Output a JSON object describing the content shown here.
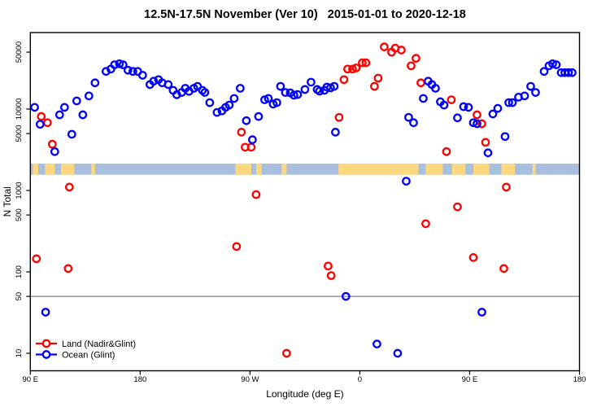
{
  "title": "12.5N-17.5N November (Ver 10)   2015-01-01 to 2020-12-18",
  "legend": {
    "items": [
      {
        "label": "Land (Nadir&Glint)",
        "color": "#ff0000"
      },
      {
        "label": "Ocean (Glint)",
        "color": "#0000ff"
      }
    ]
  },
  "chart_data": {
    "type": "scatter",
    "title": "12.5N-17.5N November (Ver 10)   2015-01-01 to 2020-12-18",
    "xlabel": "Longitude (deg E)",
    "ylabel": "N Total",
    "xlim": [
      90,
      540
    ],
    "ylim": [
      6.1,
      87000
    ],
    "y_scale": "log",
    "grid": false,
    "legend_position": "bottom-left",
    "x_ticks": [
      {
        "lon": 90,
        "label": "90 E"
      },
      {
        "lon": 180,
        "label": "180"
      },
      {
        "lon": 270,
        "label": "90 W"
      },
      {
        "lon": 360,
        "label": "0"
      },
      {
        "lon": 450,
        "label": "90 E"
      },
      {
        "lon": 540,
        "label": "180"
      }
    ],
    "y_ticks": [
      50000,
      10000,
      5000,
      1000,
      500,
      100,
      50,
      10
    ],
    "reference_line_value": 50,
    "reference_line_color": "#808080",
    "map_band": {
      "value_top": 2140,
      "value_bottom": 1560,
      "ocean_color": "#a9bfdf",
      "land_color": "#fdd87e",
      "land_patches_lon": [
        [
          92,
          96.5
        ],
        [
          102,
          110
        ],
        [
          115,
          126
        ],
        [
          140,
          143
        ],
        [
          258,
          271
        ],
        [
          275,
          279.5
        ],
        [
          296,
          300
        ],
        [
          342.5,
          408
        ],
        [
          414,
          428
        ],
        [
          435.5,
          446.5
        ],
        [
          453,
          466
        ],
        [
          476,
          487
        ],
        [
          501.5,
          504
        ]
      ]
    },
    "series": [
      {
        "name": "Land (Nadir&Glint)",
        "color": "#ff0000",
        "points": [
          [
            95,
            145
          ],
          [
            99,
            8100
          ],
          [
            104,
            6800
          ],
          [
            108,
            3700
          ],
          [
            121,
            110
          ],
          [
            122,
            1100
          ],
          [
            259,
            205
          ],
          [
            263,
            5200
          ],
          [
            266,
            3400
          ],
          [
            271,
            3400
          ],
          [
            275,
            890
          ],
          [
            300,
            10
          ],
          [
            334,
            118
          ],
          [
            336.5,
            90
          ],
          [
            343,
            7900
          ],
          [
            347,
            23000
          ],
          [
            350,
            31000
          ],
          [
            354,
            31000
          ],
          [
            357,
            32000
          ],
          [
            362,
            37000
          ],
          [
            365,
            37000
          ],
          [
            372,
            19000
          ],
          [
            375,
            24000
          ],
          [
            380,
            58000
          ],
          [
            386,
            50000
          ],
          [
            389,
            56000
          ],
          [
            394,
            53000
          ],
          [
            402,
            34000
          ],
          [
            406,
            42000
          ],
          [
            410,
            21000
          ],
          [
            414,
            390
          ],
          [
            431,
            3000
          ],
          [
            435,
            13000
          ],
          [
            440,
            630
          ],
          [
            453,
            150
          ],
          [
            456,
            8500
          ],
          [
            460,
            6600
          ],
          [
            463,
            3900
          ],
          [
            478,
            110
          ],
          [
            480,
            1100
          ]
        ]
      },
      {
        "name": "Ocean (Glint)",
        "color": "#0000ff",
        "points": [
          [
            93.5,
            10500
          ],
          [
            98,
            6500
          ],
          [
            102.5,
            32
          ],
          [
            110,
            3000
          ],
          [
            114,
            8500
          ],
          [
            118,
            10500
          ],
          [
            124,
            4900
          ],
          [
            128,
            12600
          ],
          [
            133,
            8500
          ],
          [
            138,
            14500
          ],
          [
            143,
            21000
          ],
          [
            152,
            29000
          ],
          [
            156,
            31000
          ],
          [
            159,
            35000
          ],
          [
            163,
            36000
          ],
          [
            166,
            35000
          ],
          [
            170,
            30000
          ],
          [
            174,
            29000
          ],
          [
            178,
            29000
          ],
          [
            182,
            26000
          ],
          [
            188,
            20000
          ],
          [
            191,
            22000
          ],
          [
            195,
            23000
          ],
          [
            198,
            21000
          ],
          [
            203,
            20000
          ],
          [
            207,
            17000
          ],
          [
            210,
            15000
          ],
          [
            214,
            16000
          ],
          [
            217,
            18000
          ],
          [
            220,
            16500
          ],
          [
            224,
            18000
          ],
          [
            227,
            19000
          ],
          [
            231,
            17000
          ],
          [
            233,
            16000
          ],
          [
            237,
            12000
          ],
          [
            243,
            9100
          ],
          [
            247,
            9500
          ],
          [
            250,
            10500
          ],
          [
            253,
            11200
          ],
          [
            257,
            13500
          ],
          [
            262,
            18000
          ],
          [
            267,
            7200
          ],
          [
            272,
            4200
          ],
          [
            277,
            8100
          ],
          [
            282,
            13000
          ],
          [
            285,
            13500
          ],
          [
            289,
            11500
          ],
          [
            292,
            12000
          ],
          [
            295,
            19000
          ],
          [
            299,
            16000
          ],
          [
            303,
            15800
          ],
          [
            306,
            14800
          ],
          [
            309,
            15100
          ],
          [
            315,
            17400
          ],
          [
            320,
            21400
          ],
          [
            325,
            17400
          ],
          [
            327,
            16600
          ],
          [
            331,
            17000
          ],
          [
            333,
            18600
          ],
          [
            336,
            18200
          ],
          [
            339,
            19000
          ],
          [
            340,
            5200
          ],
          [
            348.6,
            50
          ],
          [
            374,
            13
          ],
          [
            391,
            10
          ],
          [
            398,
            1300
          ],
          [
            400,
            7900
          ],
          [
            404,
            6800
          ],
          [
            412,
            13500
          ],
          [
            416,
            22000
          ],
          [
            419,
            20000
          ],
          [
            422,
            18000
          ],
          [
            426,
            12300
          ],
          [
            429,
            11200
          ],
          [
            440,
            7800
          ],
          [
            445,
            10700
          ],
          [
            449,
            10500
          ],
          [
            453,
            6800
          ],
          [
            456,
            6600
          ],
          [
            460,
            32
          ],
          [
            465,
            2900
          ],
          [
            469,
            8700
          ],
          [
            473,
            10200
          ],
          [
            479,
            4600
          ],
          [
            482,
            12000
          ],
          [
            485,
            12000
          ],
          [
            490,
            14000
          ],
          [
            495,
            14500
          ],
          [
            500,
            19000
          ],
          [
            504,
            16000
          ],
          [
            511,
            29000
          ],
          [
            515,
            34000
          ],
          [
            518,
            36000
          ],
          [
            521,
            35000
          ],
          [
            525,
            28000
          ],
          [
            528,
            28000
          ],
          [
            531,
            28000
          ],
          [
            534,
            28000
          ]
        ]
      }
    ]
  }
}
